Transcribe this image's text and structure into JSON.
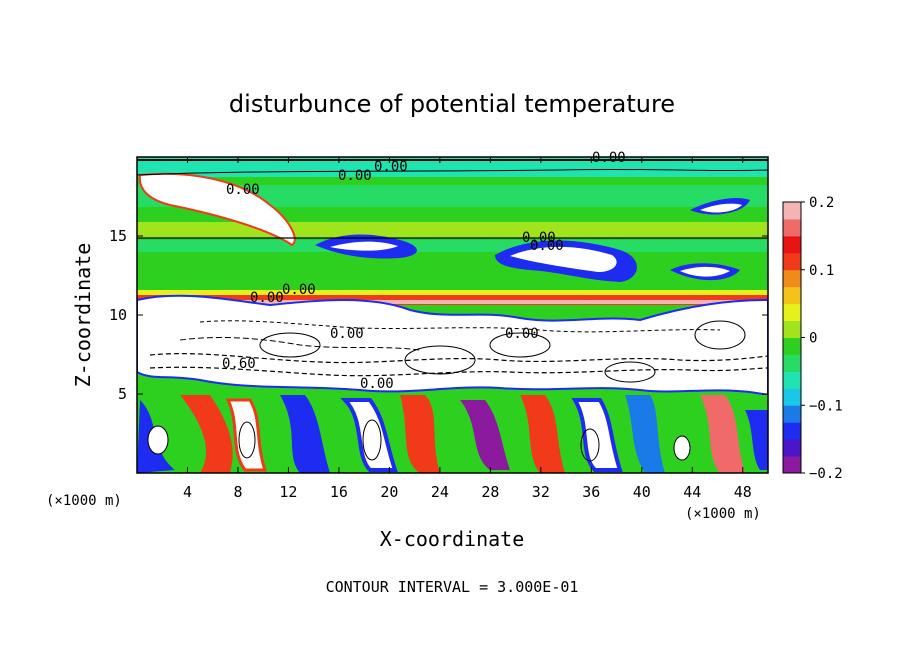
{
  "chart_data": {
    "type": "heatmap",
    "title": "disturbunce of potential temperature",
    "xlabel": "X-coordinate",
    "ylabel": "Z-coordinate",
    "x_unit": "(×1000 m)",
    "y_unit": "(×1000 m)",
    "footer": "CONTOUR INTERVAL = 3.000E-01",
    "xlim": [
      0,
      50
    ],
    "ylim": [
      0,
      20
    ],
    "x_ticks": [
      "4",
      "8",
      "12",
      "16",
      "20",
      "24",
      "28",
      "32",
      "36",
      "40",
      "44",
      "48"
    ],
    "x_tick_values": [
      4,
      8,
      12,
      16,
      20,
      24,
      28,
      32,
      36,
      40,
      44,
      48
    ],
    "y_ticks": [
      "5",
      "10",
      "15"
    ],
    "y_tick_values": [
      5,
      10,
      15
    ],
    "colorbar": {
      "range": [
        -0.2,
        0.2
      ],
      "tick_labels": [
        "0.2",
        "0.1",
        "0",
        "−0.1",
        "−0.2"
      ],
      "tick_values": [
        0.2,
        0.1,
        0,
        -0.1,
        -0.2
      ],
      "colors": [
        "#8b1a9e",
        "#4b16c8",
        "#1e2bf0",
        "#1a7be8",
        "#18c8e6",
        "#1fe3b0",
        "#27dc64",
        "#2ed020",
        "#a0e51c",
        "#e6f01a",
        "#f5c21a",
        "#f08a1a",
        "#f03a1a",
        "#e81414",
        "#f06a6a",
        "#f5b4b4"
      ]
    },
    "contour_labels": [
      "0.00",
      "0.00",
      "0.00",
      "0.00",
      "0.00",
      "0.00",
      "0.00",
      "0.00",
      "0.00",
      "0.00",
      "0.60",
      "0.00"
    ]
  },
  "colors": {
    "background": "#ffffff",
    "frame": "#000000",
    "upper_band": "#2ed020",
    "top_band": "#1fe3b0",
    "warm_band": "#f03a1a"
  }
}
